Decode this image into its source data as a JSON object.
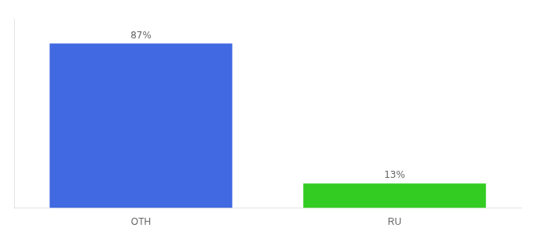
{
  "chart_data": {
    "type": "bar",
    "categories": [
      "OTH",
      "RU"
    ],
    "values": [
      87,
      13
    ],
    "value_labels": [
      "87%",
      "13%"
    ],
    "colors": [
      "#4169e1",
      "#33cc22"
    ],
    "ylim": [
      0,
      100
    ],
    "data_labels": true,
    "tick_labels": "x",
    "grid": false
  }
}
